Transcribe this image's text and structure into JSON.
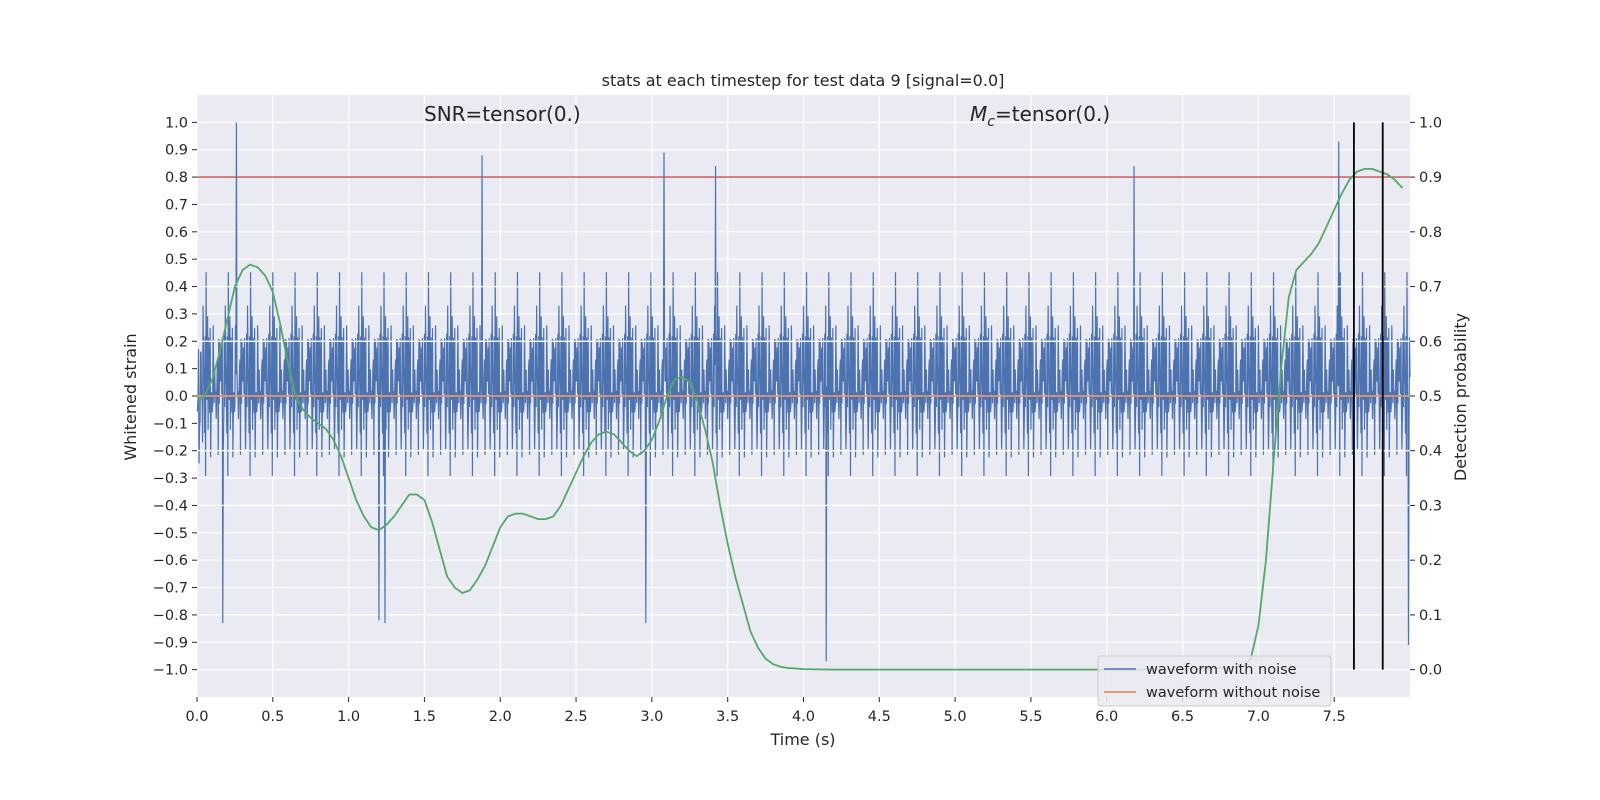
{
  "chart_data": {
    "type": "line",
    "title": "stats at each timestep for test data 9 [signal=0.0]",
    "xlabel": "Time (s)",
    "ylabel": "Whitened strain",
    "y2label": "Detection probability",
    "xlim": [
      0,
      8.0
    ],
    "ylim": [
      -1.1,
      1.1
    ],
    "y2lim": [
      -0.05,
      1.05
    ],
    "grid": true,
    "background": "#eaeaf2",
    "x_ticks": [
      "0.0",
      "0.5",
      "1.0",
      "1.5",
      "2.0",
      "2.5",
      "3.0",
      "3.5",
      "4.0",
      "4.5",
      "5.0",
      "5.5",
      "6.0",
      "6.5",
      "7.0",
      "7.5"
    ],
    "y_ticks": [
      "1.0",
      "0.9",
      "0.8",
      "0.7",
      "0.6",
      "0.5",
      "0.4",
      "0.3",
      "0.2",
      "0.1",
      "0.0",
      "-0.1",
      "-0.2",
      "-0.3",
      "-0.4",
      "-0.5",
      "-0.6",
      "-0.7",
      "-0.8",
      "-0.9",
      "-1.0"
    ],
    "y2_ticks": [
      "1.0",
      "0.9",
      "0.8",
      "0.7",
      "0.6",
      "0.5",
      "0.4",
      "0.3",
      "0.2",
      "0.1",
      "0.0"
    ],
    "annotations": {
      "snr_text": "SNR=tensor(0.)",
      "mc_symbol": "M",
      "mc_sub": "c",
      "mc_value": "=tensor(0.)"
    },
    "threshold_line": {
      "y": 0.8,
      "color": "#c44e52"
    },
    "white_hlines_secondary": [
      0.7,
      0.6,
      0.5,
      0.4,
      0.3
    ],
    "vlines": [
      {
        "x": 7.63,
        "ymin": 0.0,
        "ymax": 1.0,
        "color": "#000000"
      },
      {
        "x": 7.82,
        "ymin": 0.0,
        "ymax": 1.0,
        "color": "#000000"
      }
    ],
    "series": [
      {
        "name": "waveform with noise",
        "color": "#4c72b0",
        "axis": "left",
        "description": "dense noise, typically ±0.35 with spikes",
        "spikes_max": [
          [
            0.26,
            1.0
          ],
          [
            1.88,
            0.88
          ],
          [
            3.08,
            0.89
          ],
          [
            3.42,
            0.84
          ],
          [
            6.18,
            0.84
          ],
          [
            7.53,
            0.93
          ]
        ],
        "spikes_min": [
          [
            0.17,
            -0.83
          ],
          [
            1.2,
            -0.82
          ],
          [
            1.24,
            -0.83
          ],
          [
            2.96,
            -0.83
          ],
          [
            4.15,
            -0.97
          ],
          [
            7.63,
            -0.65
          ],
          [
            7.99,
            -0.91
          ]
        ]
      },
      {
        "name": "waveform without noise",
        "color": "#dd8452",
        "axis": "left",
        "x": [
          0.0,
          8.0
        ],
        "y": [
          0.0,
          0.0
        ]
      },
      {
        "name": "Detection probability",
        "color": "#55a868",
        "axis": "right",
        "x": [
          0.0,
          0.05,
          0.1,
          0.15,
          0.2,
          0.25,
          0.3,
          0.35,
          0.4,
          0.45,
          0.5,
          0.55,
          0.6,
          0.65,
          0.7,
          0.75,
          0.8,
          0.85,
          0.9,
          0.95,
          1.0,
          1.05,
          1.1,
          1.15,
          1.2,
          1.25,
          1.3,
          1.35,
          1.4,
          1.45,
          1.5,
          1.55,
          1.6,
          1.65,
          1.7,
          1.75,
          1.8,
          1.85,
          1.9,
          1.95,
          2.0,
          2.05,
          2.1,
          2.15,
          2.2,
          2.25,
          2.3,
          2.35,
          2.4,
          2.45,
          2.5,
          2.55,
          2.6,
          2.65,
          2.7,
          2.75,
          2.8,
          2.85,
          2.9,
          2.95,
          3.0,
          3.05,
          3.1,
          3.15,
          3.2,
          3.25,
          3.3,
          3.35,
          3.4,
          3.45,
          3.5,
          3.55,
          3.6,
          3.65,
          3.7,
          3.75,
          3.8,
          3.85,
          3.9,
          3.95,
          4.0,
          4.2,
          4.5,
          5.0,
          5.5,
          6.0,
          6.5,
          6.9,
          6.95,
          7.0,
          7.05,
          7.1,
          7.15,
          7.2,
          7.25,
          7.3,
          7.35,
          7.4,
          7.45,
          7.5,
          7.55,
          7.6,
          7.65,
          7.7,
          7.75,
          7.8,
          7.85,
          7.9,
          7.95
        ],
        "y": [
          0.49,
          0.5,
          0.53,
          0.58,
          0.64,
          0.7,
          0.73,
          0.74,
          0.735,
          0.72,
          0.69,
          0.63,
          0.56,
          0.5,
          0.475,
          0.46,
          0.45,
          0.44,
          0.42,
          0.39,
          0.35,
          0.31,
          0.28,
          0.26,
          0.255,
          0.265,
          0.28,
          0.3,
          0.32,
          0.32,
          0.31,
          0.27,
          0.22,
          0.17,
          0.15,
          0.14,
          0.145,
          0.165,
          0.19,
          0.225,
          0.26,
          0.28,
          0.285,
          0.285,
          0.28,
          0.275,
          0.275,
          0.28,
          0.3,
          0.33,
          0.36,
          0.39,
          0.415,
          0.43,
          0.435,
          0.43,
          0.415,
          0.4,
          0.39,
          0.4,
          0.42,
          0.455,
          0.5,
          0.53,
          0.535,
          0.525,
          0.49,
          0.44,
          0.38,
          0.3,
          0.23,
          0.17,
          0.12,
          0.07,
          0.04,
          0.02,
          0.01,
          0.005,
          0.003,
          0.002,
          0.001,
          0.0,
          0.0,
          0.0,
          0.0,
          0.0,
          0.0,
          0.005,
          0.02,
          0.08,
          0.2,
          0.38,
          0.55,
          0.68,
          0.73,
          0.745,
          0.76,
          0.78,
          0.81,
          0.84,
          0.87,
          0.895,
          0.91,
          0.915,
          0.915,
          0.91,
          0.905,
          0.895,
          0.88
        ]
      }
    ],
    "legend": {
      "placement": "lower-right",
      "entries": [
        "waveform with noise",
        "waveform without noise"
      ]
    }
  }
}
